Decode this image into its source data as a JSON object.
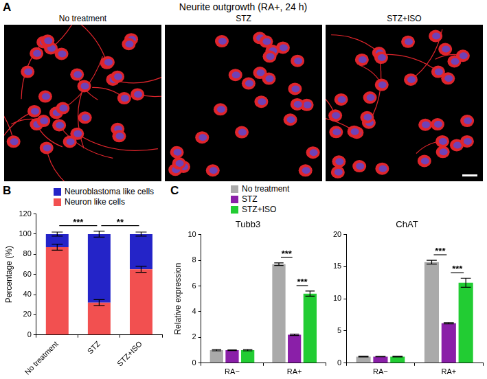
{
  "image_panel": {
    "panel": "A",
    "title": "Neurite outgrowth (RA+, 24 h)",
    "images": [
      "No treatment",
      "STZ",
      "STZ+ISO"
    ]
  },
  "chart_data": [
    {
      "panel": "B",
      "type": "bar",
      "stacked": true,
      "grid": false,
      "legend": "top",
      "categories": [
        "No treatment",
        "STZ",
        "STZ+ISO"
      ],
      "ylabel": "Percentage (%)",
      "ylim": [
        0,
        120
      ],
      "yticks": [
        0,
        20,
        40,
        60,
        80,
        100,
        120
      ],
      "series": [
        {
          "name": "Neuron like cells",
          "color": "#f25050",
          "values": [
            87,
            32,
            65
          ],
          "errors": [
            3,
            3,
            3
          ]
        },
        {
          "name": "Neuroblastoma like cells",
          "color": "#2424c8",
          "values": [
            13,
            68,
            35
          ],
          "errors": [
            2,
            3,
            2
          ]
        }
      ],
      "annotations": [
        {
          "text": "***",
          "from": "No treatment",
          "to": "STZ"
        },
        {
          "text": "**",
          "from": "STZ",
          "to": "STZ+ISO"
        }
      ]
    },
    {
      "panel": "C",
      "type": "bar",
      "title": "Tubb3",
      "grid": false,
      "legend": "top",
      "categories": [
        "RA−",
        "RA+"
      ],
      "ylabel": "Relative expression",
      "ylim": [
        0,
        10
      ],
      "yticks": [
        0,
        2,
        4,
        6,
        8,
        10
      ],
      "series": [
        {
          "name": "No treatment",
          "color": "#aaaaaa",
          "values": [
            1,
            7.7
          ],
          "errors": [
            0.05,
            0.1
          ]
        },
        {
          "name": "STZ",
          "color": "#8a1fa8",
          "values": [
            1,
            2.2
          ],
          "errors": [
            0.03,
            0.05
          ]
        },
        {
          "name": "STZ+ISO",
          "color": "#22cc33",
          "values": [
            1,
            5.4
          ],
          "errors": [
            0.05,
            0.2
          ]
        }
      ],
      "annotations": [
        {
          "text": "***",
          "category": "RA+",
          "from": "No treatment",
          "to": "STZ"
        },
        {
          "text": "***",
          "category": "RA+",
          "from": "STZ",
          "to": "STZ+ISO"
        }
      ]
    },
    {
      "type": "bar",
      "title": "ChAT",
      "grid": false,
      "categories": [
        "RA−",
        "RA+"
      ],
      "ylim": [
        0,
        20
      ],
      "yticks": [
        0,
        5,
        10,
        15,
        20
      ],
      "series": [
        {
          "name": "No treatment",
          "color": "#aaaaaa",
          "values": [
            1,
            15.7
          ],
          "errors": [
            0.05,
            0.3
          ]
        },
        {
          "name": "STZ",
          "color": "#8a1fa8",
          "values": [
            1,
            6.2
          ],
          "errors": [
            0.03,
            0.1
          ]
        },
        {
          "name": "STZ+ISO",
          "color": "#22cc33",
          "values": [
            1,
            12.5
          ],
          "errors": [
            0.05,
            0.7
          ]
        }
      ],
      "annotations": [
        {
          "text": "***",
          "category": "RA+",
          "from": "No treatment",
          "to": "STZ"
        },
        {
          "text": "***",
          "category": "RA+",
          "from": "STZ",
          "to": "STZ+ISO"
        }
      ]
    }
  ]
}
